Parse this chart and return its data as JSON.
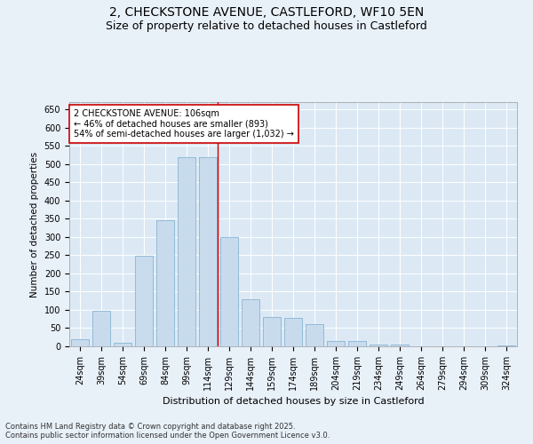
{
  "title_line1": "2, CHECKSTONE AVENUE, CASTLEFORD, WF10 5EN",
  "title_line2": "Size of property relative to detached houses in Castleford",
  "xlabel": "Distribution of detached houses by size in Castleford",
  "ylabel": "Number of detached properties",
  "categories": [
    "24sqm",
    "39sqm",
    "54sqm",
    "69sqm",
    "84sqm",
    "99sqm",
    "114sqm",
    "129sqm",
    "144sqm",
    "159sqm",
    "174sqm",
    "189sqm",
    "204sqm",
    "219sqm",
    "234sqm",
    "249sqm",
    "264sqm",
    "279sqm",
    "294sqm",
    "309sqm",
    "324sqm"
  ],
  "values": [
    20,
    97,
    10,
    248,
    345,
    520,
    520,
    300,
    130,
    80,
    78,
    60,
    15,
    15,
    5,
    5,
    0,
    0,
    0,
    0,
    3
  ],
  "bar_color": "#c8dbed",
  "bar_edge_color": "#88b4d4",
  "vline_x_index": 6.0,
  "vline_color": "#cc0000",
  "annotation_text": "2 CHECKSTONE AVENUE: 106sqm\n← 46% of detached houses are smaller (893)\n54% of semi-detached houses are larger (1,032) →",
  "annotation_box_color": "#ffffff",
  "annotation_box_edge": "#cc0000",
  "ylim": [
    0,
    670
  ],
  "yticks": [
    0,
    50,
    100,
    150,
    200,
    250,
    300,
    350,
    400,
    450,
    500,
    550,
    600,
    650
  ],
  "bg_color": "#e8f0f8",
  "plot_bg": "#dce9f5",
  "footnote": "Contains HM Land Registry data © Crown copyright and database right 2025.\nContains public sector information licensed under the Open Government Licence v3.0.",
  "title_fontsize": 10,
  "subtitle_fontsize": 9,
  "annotation_fontsize": 7,
  "axis_fontsize": 7,
  "ylabel_fontsize": 7.5,
  "xlabel_fontsize": 8
}
